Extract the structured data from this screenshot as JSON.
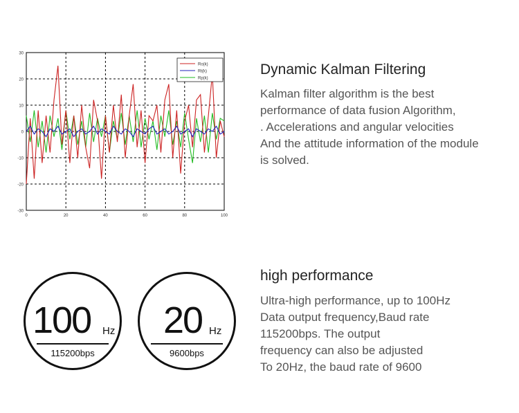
{
  "kalman": {
    "title": "Dynamic Kalman Filtering",
    "lines": [
      "Kalman filter algorithm is the best",
      "performance of data fusion Algorithm,",
      ".  Accelerations and angular velocities",
      "And the attitude information of the module",
      "is solved."
    ]
  },
  "performance": {
    "title": "high performance",
    "lines": [
      "Ultra-high performance, up to 100Hz",
      "Data output frequency,Baud rate",
      "115200bps. The output",
      "frequency can also be adjusted",
      "To 20Hz, the baud rate of 9600"
    ]
  },
  "badges": [
    {
      "value": "100",
      "unit": "Hz",
      "baud": "115200bps"
    },
    {
      "value": "20",
      "unit": "Hz",
      "baud": "9600bps"
    }
  ],
  "colors": {
    "ro": "#cc2222",
    "rt": "#2222bb",
    "rp": "#22bb22",
    "grid": "#000000"
  },
  "chart_data": {
    "type": "line",
    "xlim": [
      0,
      100
    ],
    "ylim": [
      -30,
      30
    ],
    "xticks": [
      "0",
      "20",
      "40",
      "60",
      "80",
      "100"
    ],
    "yticks": [
      "30",
      "20",
      "10",
      "0",
      "-10",
      "-20",
      "-30"
    ],
    "grid": true,
    "legend_position": "top-right",
    "x": [
      0,
      2,
      4,
      6,
      8,
      10,
      12,
      14,
      16,
      18,
      20,
      22,
      24,
      26,
      28,
      30,
      32,
      34,
      36,
      38,
      40,
      42,
      44,
      46,
      48,
      50,
      52,
      54,
      56,
      58,
      60,
      62,
      64,
      66,
      68,
      70,
      72,
      74,
      76,
      78,
      80,
      82,
      84,
      86,
      88,
      90,
      92,
      94,
      96,
      98,
      100
    ],
    "series": [
      {
        "name": "Ro(k)",
        "color": "#cc2222",
        "values": [
          -20,
          5,
          -18,
          8,
          -12,
          6,
          -8,
          12,
          25,
          -5,
          8,
          -12,
          6,
          -10,
          10,
          -6,
          -14,
          12,
          4,
          -18,
          6,
          -8,
          10,
          -4,
          14,
          -10,
          6,
          18,
          -6,
          8,
          -12,
          6,
          4,
          10,
          -8,
          12,
          18,
          -10,
          8,
          -16,
          4,
          10,
          -6,
          12,
          14,
          -8,
          6,
          22,
          -10,
          4,
          -2
        ]
      },
      {
        "name": "Rt(k)",
        "color": "#2222bb",
        "values": [
          0,
          2,
          -1,
          1,
          0,
          -2,
          1,
          0,
          2,
          -1,
          0,
          1,
          -2,
          0,
          1,
          -1,
          0,
          2,
          -1,
          1,
          0,
          -1,
          2,
          0,
          -1,
          1,
          0,
          -2,
          1,
          0,
          -1,
          1,
          2,
          -1,
          0,
          1,
          -1,
          0,
          2,
          -1,
          0,
          1,
          -2,
          1,
          0,
          -1,
          1,
          0,
          2,
          -1,
          0
        ]
      },
      {
        "name": "Rp(k)",
        "color": "#22bb22",
        "values": [
          6,
          -4,
          8,
          -6,
          4,
          -8,
          6,
          -2,
          5,
          -7,
          8,
          -3,
          6,
          -5,
          4,
          -6,
          7,
          -4,
          5,
          -2,
          6,
          -8,
          4,
          -3,
          7,
          -5,
          6,
          -4,
          8,
          -6,
          5,
          -3,
          4,
          -7,
          6,
          -2,
          8,
          -5,
          4,
          -6,
          7,
          -3,
          -12,
          5,
          -4,
          6,
          -8,
          7,
          -3,
          5,
          4
        ]
      }
    ]
  }
}
